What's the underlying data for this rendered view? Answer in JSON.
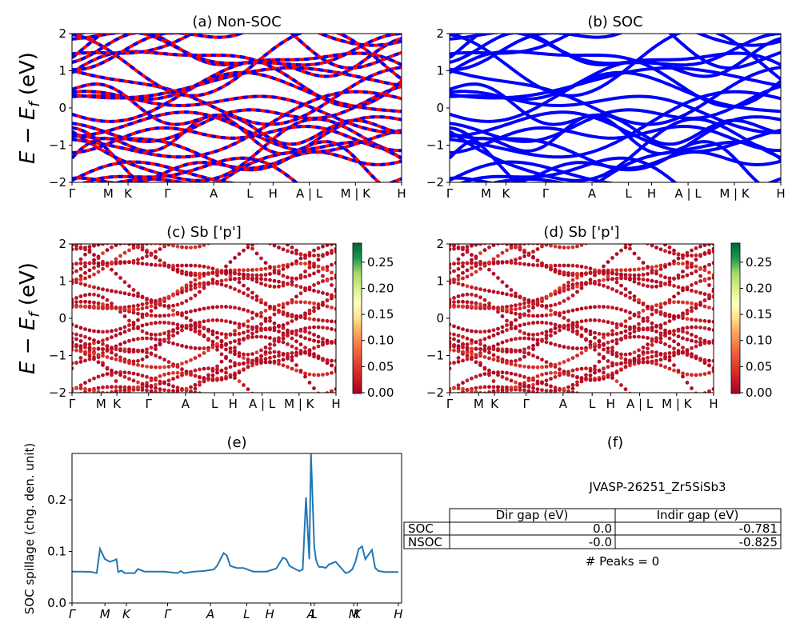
{
  "chart_data": [
    {
      "id": "a",
      "type": "line",
      "title": "(a) Non-SOC",
      "ylabel": "E − E_f (eV)",
      "ylim": [
        -2,
        2
      ],
      "yticks": [
        -2,
        -1,
        0,
        1,
        2
      ],
      "kpath": [
        "Γ",
        "M",
        "K",
        "Γ",
        "A",
        "L",
        "H",
        "A | L",
        "M | K",
        "H"
      ],
      "kpos": [
        0,
        0.11,
        0.17,
        0.29,
        0.43,
        0.54,
        0.61,
        0.72,
        0.86,
        1.0
      ],
      "series": [
        {
          "color": "#ff0000"
        },
        {
          "color": "#0000ff"
        }
      ]
    },
    {
      "id": "b",
      "type": "line",
      "title": "(b) SOC",
      "ylim": [
        -2,
        2
      ],
      "yticks": [
        -2,
        -1,
        0,
        1,
        2
      ],
      "kpath": [
        "Γ",
        "M",
        "K",
        "Γ",
        "A",
        "L",
        "H",
        "A | L",
        "M | K",
        "H"
      ],
      "kpos": [
        0,
        0.11,
        0.17,
        0.29,
        0.43,
        0.54,
        0.61,
        0.72,
        0.86,
        1.0
      ],
      "series": [
        {
          "color": "#0000ff"
        }
      ]
    },
    {
      "id": "c",
      "type": "scatter",
      "title": "(c)  Sb ['p']",
      "ylabel": "E − E_f (eV)",
      "ylim": [
        -2,
        2
      ],
      "yticks": [
        -2,
        -1,
        0,
        1,
        2
      ],
      "kpath": [
        "Γ",
        "M",
        "K",
        "Γ",
        "A",
        "L",
        "H",
        "A | L",
        "M | K",
        "H"
      ],
      "kpos": [
        0,
        0.11,
        0.17,
        0.29,
        0.43,
        0.54,
        0.61,
        0.72,
        0.86,
        1.0
      ],
      "colorbar": {
        "min": 0.0,
        "max": 0.285,
        "ticks": [
          "0.00",
          "0.05",
          "0.10",
          "0.15",
          "0.20",
          "0.25"
        ],
        "colormap": "RdYlGn"
      }
    },
    {
      "id": "d",
      "type": "scatter",
      "title": "(d) Sb ['p']",
      "ylim": [
        -2,
        2
      ],
      "yticks": [
        -2,
        -1,
        0,
        1,
        2
      ],
      "kpath": [
        "Γ",
        "M",
        "K",
        "Γ",
        "A",
        "L",
        "H",
        "A | L",
        "M | K",
        "H"
      ],
      "kpos": [
        0,
        0.11,
        0.17,
        0.29,
        0.43,
        0.54,
        0.61,
        0.72,
        0.86,
        1.0
      ],
      "colorbar": {
        "min": 0.0,
        "max": 0.285,
        "ticks": [
          "0.00",
          "0.05",
          "0.10",
          "0.15",
          "0.20",
          "0.25"
        ],
        "colormap": "RdYlGn"
      }
    },
    {
      "id": "e",
      "type": "line",
      "title": "(e)",
      "ylabel": "SOC spillage (chg. den. unit)",
      "ylim": [
        0,
        0.29
      ],
      "yticks": [
        "0.0",
        "0.1",
        "0.2"
      ],
      "yticks_values": [
        0.0,
        0.1,
        0.2
      ],
      "kpath": [
        "Γ",
        "M",
        "K",
        "Γ",
        "A",
        "L",
        "H",
        "A",
        "L",
        "M",
        "K",
        "H"
      ],
      "kpos": [
        0,
        0.1,
        0.165,
        0.29,
        0.42,
        0.53,
        0.6,
        0.725,
        0.735,
        0.855,
        0.865,
        0.99
      ],
      "series": [
        {
          "color": "#1f77b4",
          "x": [
            0,
            0.03,
            0.06,
            0.075,
            0.085,
            0.1,
            0.115,
            0.125,
            0.135,
            0.14,
            0.15,
            0.16,
            0.17,
            0.18,
            0.19,
            0.2,
            0.22,
            0.25,
            0.28,
            0.32,
            0.33,
            0.34,
            0.37,
            0.4,
            0.43,
            0.44,
            0.46,
            0.47,
            0.48,
            0.5,
            0.52,
            0.55,
            0.59,
            0.62,
            0.64,
            0.65,
            0.66,
            0.68,
            0.69,
            0.7,
            0.71,
            0.72,
            0.725,
            0.735,
            0.74,
            0.745,
            0.75,
            0.76,
            0.77,
            0.78,
            0.8,
            0.83,
            0.84,
            0.85,
            0.86,
            0.87,
            0.88,
            0.89,
            0.91,
            0.92,
            0.93,
            0.95,
            0.97,
            0.99
          ],
          "y": [
            0.061,
            0.061,
            0.06,
            0.058,
            0.105,
            0.085,
            0.08,
            0.082,
            0.085,
            0.06,
            0.063,
            0.058,
            0.058,
            0.058,
            0.058,
            0.066,
            0.061,
            0.061,
            0.061,
            0.058,
            0.062,
            0.058,
            0.061,
            0.062,
            0.065,
            0.072,
            0.097,
            0.092,
            0.072,
            0.068,
            0.068,
            0.061,
            0.061,
            0.067,
            0.088,
            0.085,
            0.072,
            0.065,
            0.062,
            0.065,
            0.205,
            0.085,
            0.29,
            0.11,
            0.085,
            0.075,
            0.07,
            0.07,
            0.068,
            0.075,
            0.08,
            0.058,
            0.06,
            0.065,
            0.08,
            0.105,
            0.11,
            0.085,
            0.103,
            0.068,
            0.062,
            0.06,
            0.06,
            0.06
          ]
        }
      ]
    }
  ],
  "panel_f": {
    "title": "(f)",
    "material": "JVASP-26251_Zr5SiSb3",
    "table": {
      "headers": [
        "Dir gap (eV)",
        "Indir gap (eV)"
      ],
      "rows": [
        {
          "label": "SOC",
          "dir": "0.0",
          "indir": "-0.781"
        },
        {
          "label": "NSOC",
          "dir": "-0.0",
          "indir": "-0.825"
        }
      ]
    },
    "peaks": "# Peaks = 0"
  }
}
